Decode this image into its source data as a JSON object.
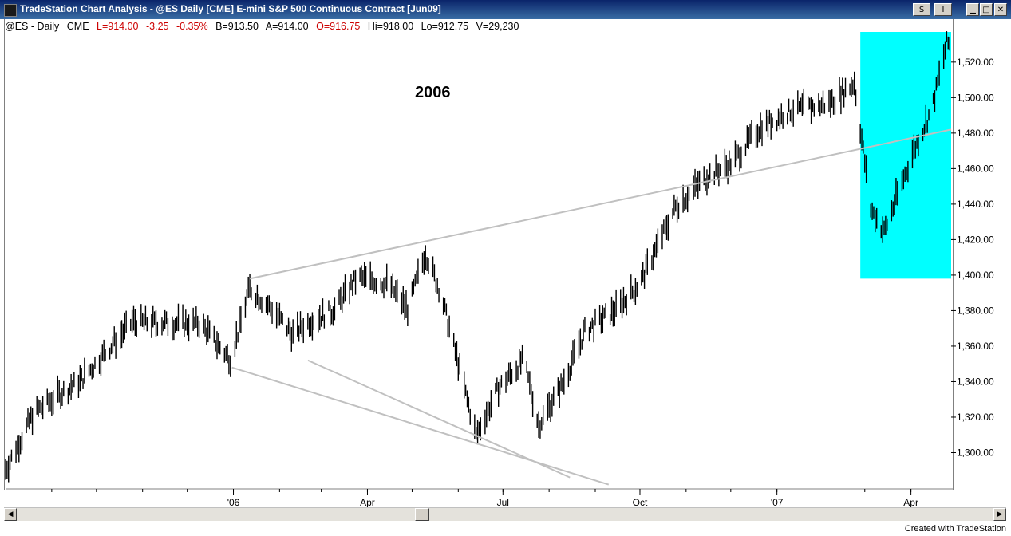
{
  "window": {
    "title": "TradeStation Chart Analysis - @ES  Daily  [CME] E-mini S&P 500 Continuous Contract [Jun09]",
    "symbol_btn": "S",
    "interval_btn": "I",
    "minimize": "▁",
    "maximize": "□",
    "close": "✕"
  },
  "status": {
    "symbol": "@ES - Daily",
    "exchange": "CME",
    "last": "L=914.00",
    "change": "-3.25",
    "pct": "-0.35%",
    "bid": "B=913.50",
    "ask": "A=914.00",
    "open": "O=916.75",
    "high": "Hi=918.00",
    "low": "Lo=912.75",
    "volume": "V=29,230"
  },
  "annotation": "2006",
  "footer": "Created with TradeStation",
  "colors": {
    "bars": "#000000",
    "trendline": "#c0c0c0",
    "highlight": "#00ffff",
    "grid": "#808080"
  },
  "chart_data": {
    "type": "ohlc",
    "y_ticks": [
      "1,300.00",
      "1,320.00",
      "1,340.00",
      "1,360.00",
      "1,380.00",
      "1,400.00",
      "1,420.00",
      "1,440.00",
      "1,460.00",
      "1,480.00",
      "1,500.00",
      "1,520.00"
    ],
    "y_tick_values": [
      1300,
      1320,
      1340,
      1360,
      1380,
      1400,
      1420,
      1440,
      1460,
      1480,
      1500,
      1520
    ],
    "ylim": [
      1280,
      1537
    ],
    "x_ticks": [
      "'06",
      "Apr",
      "Jul",
      "Oct",
      "'07",
      "Apr"
    ],
    "x_tick_dates": [
      "2006-01-01",
      "2006-04-01",
      "2006-07-01",
      "2006-10-01",
      "2007-01-01",
      "2007-04-01"
    ],
    "x_range": [
      "2005-08-01",
      "2007-04-28"
    ],
    "anchor_points": [
      [
        "2005-08-01",
        1290
      ],
      [
        "2005-08-20",
        1322
      ],
      [
        "2005-09-20",
        1340
      ],
      [
        "2005-10-25",
        1373
      ],
      [
        "2005-12-10",
        1372
      ],
      [
        "2005-12-30",
        1352
      ],
      [
        "2006-01-12",
        1392
      ],
      [
        "2006-01-25",
        1382
      ],
      [
        "2006-02-10",
        1366
      ],
      [
        "2006-02-22",
        1374
      ],
      [
        "2006-03-10",
        1380
      ],
      [
        "2006-03-25",
        1398
      ],
      [
        "2006-04-15",
        1395
      ],
      [
        "2006-04-28",
        1380
      ],
      [
        "2006-05-10",
        1412
      ],
      [
        "2006-05-20",
        1390
      ],
      [
        "2006-06-13",
        1309
      ],
      [
        "2006-06-28",
        1336
      ],
      [
        "2006-07-15",
        1352
      ],
      [
        "2006-07-25",
        1315
      ],
      [
        "2006-08-10",
        1338
      ],
      [
        "2006-08-25",
        1368
      ],
      [
        "2006-09-15",
        1380
      ],
      [
        "2006-10-01",
        1395
      ],
      [
        "2006-10-25",
        1438
      ],
      [
        "2006-11-15",
        1455
      ],
      [
        "2006-12-01",
        1462
      ],
      [
        "2006-12-20",
        1482
      ],
      [
        "2007-01-10",
        1492
      ],
      [
        "2007-02-05",
        1496
      ],
      [
        "2007-02-22",
        1508
      ],
      [
        "2007-03-05",
        1437
      ],
      [
        "2007-03-14",
        1424
      ],
      [
        "2007-04-03",
        1470
      ],
      [
        "2007-04-15",
        1493
      ],
      [
        "2007-04-25",
        1530
      ]
    ],
    "trendlines": [
      {
        "from": [
          "2006-01-12",
          1398
        ],
        "to": [
          "2007-04-28",
          1482
        ]
      },
      {
        "from": [
          "2005-12-31",
          1348
        ],
        "to": [
          "2006-09-10",
          1282
        ]
      },
      {
        "from": [
          "2006-02-20",
          1352
        ],
        "to": [
          "2006-08-15",
          1286
        ]
      }
    ],
    "highlight": {
      "from": "2007-02-26",
      "to": "2007-04-28",
      "ymin": 1398,
      "ymax": 1537
    }
  }
}
